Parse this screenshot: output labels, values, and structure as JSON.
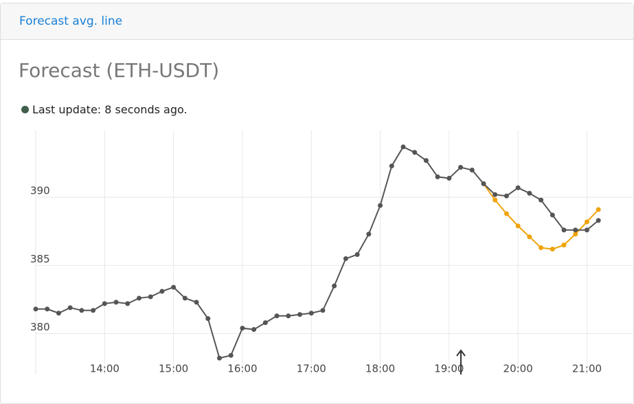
{
  "header": {
    "title": "Forecast avg. line"
  },
  "card": {
    "title": "Forecast (ETH-USDT)",
    "status": "Last update: 8 seconds ago."
  },
  "chart_data": {
    "type": "line",
    "x": [
      780,
      790,
      800,
      810,
      820,
      830,
      840,
      850,
      860,
      870,
      880,
      890,
      900,
      910,
      920,
      930,
      940,
      950,
      960,
      970,
      980,
      990,
      1000,
      1010,
      1020,
      1030,
      1040,
      1050,
      1060,
      1070,
      1080,
      1090,
      1100,
      1110,
      1120,
      1130,
      1140,
      1150,
      1160,
      1170,
      1180,
      1190,
      1200,
      1210,
      1220,
      1230,
      1240,
      1250,
      1260,
      1270
    ],
    "series": [
      {
        "color": "#f0a30a",
        "values": [
          null,
          null,
          null,
          null,
          null,
          null,
          null,
          null,
          null,
          null,
          null,
          null,
          null,
          null,
          null,
          null,
          null,
          null,
          null,
          null,
          null,
          null,
          null,
          null,
          null,
          null,
          null,
          null,
          null,
          null,
          null,
          null,
          null,
          null,
          null,
          null,
          null,
          null,
          null,
          391.0,
          389.8,
          388.8,
          387.9,
          387.1,
          386.3,
          386.2,
          386.5,
          387.3,
          388.2,
          389.1
        ]
      },
      {
        "color": "#555555",
        "values": [
          381.8,
          381.8,
          381.5,
          381.9,
          381.7,
          381.7,
          382.2,
          382.3,
          382.2,
          382.6,
          382.7,
          383.1,
          383.4,
          382.6,
          382.3,
          381.1,
          378.2,
          378.4,
          380.4,
          380.3,
          380.8,
          381.3,
          381.3,
          381.4,
          381.5,
          381.7,
          383.5,
          385.5,
          385.8,
          387.3,
          389.4,
          392.3,
          393.7,
          393.3,
          392.7,
          391.5,
          391.4,
          392.2,
          392.0,
          391.0,
          390.2,
          390.1,
          390.7,
          390.3,
          389.8,
          388.7,
          387.6,
          387.6,
          387.6,
          388.3
        ]
      }
    ],
    "xlim": [
      780,
      1301
    ],
    "xticks": [
      {
        "value": 840,
        "label": "14:00"
      },
      {
        "value": 900,
        "label": "15:00"
      },
      {
        "value": 960,
        "label": "16:00"
      },
      {
        "value": 1020,
        "label": "17:00"
      },
      {
        "value": 1080,
        "label": "18:00"
      },
      {
        "value": 1140,
        "label": "19:00"
      },
      {
        "value": 1200,
        "label": "20:00"
      },
      {
        "value": 1260,
        "label": "21:00"
      }
    ],
    "ylim": [
      377,
      394.9
    ],
    "yticks": [
      380,
      385,
      390
    ],
    "grid": true
  }
}
